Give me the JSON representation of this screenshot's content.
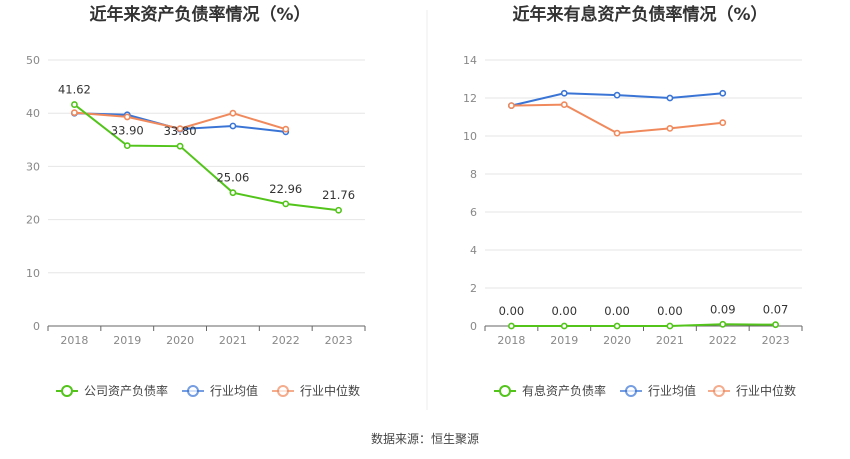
{
  "source": "数据来源：恒生聚源",
  "chart_data": [
    {
      "type": "line",
      "title": "近年来资产负债率情况（%）",
      "categories": [
        "2018",
        "2019",
        "2020",
        "2021",
        "2022",
        "2023"
      ],
      "ylim": [
        0,
        50
      ],
      "yticks": [
        0,
        10,
        20,
        30,
        40,
        50
      ],
      "grid": true,
      "legend_position": "bottom",
      "series": [
        {
          "name": "公司资产负债率",
          "color": "#52c41a",
          "values": [
            41.62,
            33.9,
            33.8,
            25.06,
            22.96,
            21.76
          ],
          "labels": [
            "41.62",
            "33.90",
            "33.80",
            "25.06",
            "22.96",
            "21.76"
          ]
        },
        {
          "name": "行业均值",
          "color": "#3a75d6",
          "values": [
            40.0,
            39.7,
            37.0,
            37.6,
            36.5,
            null
          ]
        },
        {
          "name": "行业中位数",
          "color": "#f08a5d",
          "values": [
            40.1,
            39.3,
            37.1,
            40.0,
            37.0,
            null
          ]
        }
      ]
    },
    {
      "type": "line",
      "title": "近年来有息资产负债率情况（%）",
      "categories": [
        "2018",
        "2019",
        "2020",
        "2021",
        "2022",
        "2023"
      ],
      "ylim": [
        0,
        14
      ],
      "yticks": [
        0,
        2,
        4,
        6,
        8,
        10,
        12,
        14
      ],
      "grid": true,
      "legend_position": "bottom",
      "series": [
        {
          "name": "有息资产负债率",
          "color": "#52c41a",
          "values": [
            0.0,
            0.0,
            0.0,
            0.0,
            0.09,
            0.07
          ],
          "labels": [
            "0.00",
            "0.00",
            "0.00",
            "0.00",
            "0.09",
            "0.07"
          ]
        },
        {
          "name": "行业均值",
          "color": "#3a75d6",
          "values": [
            11.6,
            12.25,
            12.15,
            12.0,
            12.25,
            null
          ]
        },
        {
          "name": "行业中位数",
          "color": "#f08a5d",
          "values": [
            11.6,
            11.65,
            10.15,
            10.4,
            10.7,
            null
          ]
        }
      ]
    }
  ]
}
